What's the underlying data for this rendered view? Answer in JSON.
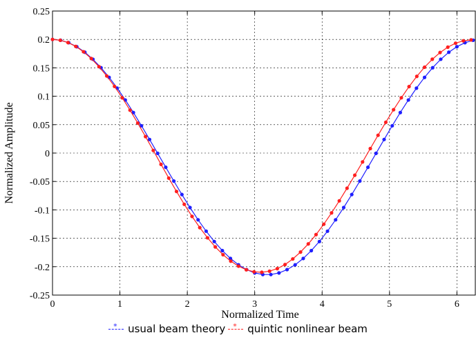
{
  "chart_data": {
    "type": "line",
    "title": "",
    "xlabel": "Normalized Time",
    "ylabel": "Normalized Amplitude",
    "xlim": [
      0,
      6.2832
    ],
    "ylim": [
      -0.25,
      0.25
    ],
    "xticks": [
      0,
      1,
      2,
      3,
      4,
      5,
      6
    ],
    "xtick_labels": [
      "0",
      "1",
      "2",
      "3",
      "4",
      "5",
      "6"
    ],
    "yticks": [
      0.25,
      0.2,
      0.15,
      0.1,
      0.05,
      0,
      -0.05,
      -0.1,
      -0.15,
      -0.2,
      -0.25
    ],
    "ytick_labels": [
      "0.25",
      "0.2",
      "0.15",
      "0.1",
      "0.05",
      "0",
      "-0.05",
      "-0.1",
      "-0.15",
      "-0.2",
      "-0.25"
    ],
    "grid": true,
    "legend_position": "bottom-center",
    "series": [
      {
        "name": "usual beam theory",
        "color": "#1f1fff",
        "x": [
          0,
          0.12,
          0.24,
          0.36,
          0.48,
          0.6,
          0.72,
          0.84,
          0.96,
          1.08,
          1.2,
          1.32,
          1.44,
          1.56,
          1.68,
          1.8,
          1.92,
          2.04,
          2.16,
          2.28,
          2.4,
          2.52,
          2.64,
          2.76,
          2.88,
          3.0,
          3.12,
          3.24,
          3.36,
          3.48,
          3.6,
          3.72,
          3.84,
          3.96,
          4.08,
          4.2,
          4.32,
          4.44,
          4.56,
          4.68,
          4.8,
          4.92,
          5.04,
          5.16,
          5.28,
          5.4,
          5.52,
          5.64,
          5.76,
          5.88,
          6.0,
          6.12,
          6.24
        ],
        "y": [
          0.2,
          0.1986,
          0.1943,
          0.1872,
          0.1775,
          0.1651,
          0.1502,
          0.1332,
          0.1142,
          0.0934,
          0.0713,
          0.048,
          0.0239,
          -0.0005,
          -0.025,
          -0.0493,
          -0.073,
          -0.0959,
          -0.1175,
          -0.1375,
          -0.1557,
          -0.1717,
          -0.1855,
          -0.1967,
          -0.2052,
          -0.211,
          -0.2138,
          -0.2138,
          -0.211,
          -0.2052,
          -0.1967,
          -0.1855,
          -0.1717,
          -0.1557,
          -0.1375,
          -0.1175,
          -0.0959,
          -0.073,
          -0.0493,
          -0.025,
          -0.0005,
          0.0239,
          0.048,
          0.0713,
          0.0934,
          0.1142,
          0.1332,
          0.1502,
          0.1651,
          0.1775,
          0.1872,
          0.1943,
          0.1986
        ]
      },
      {
        "name": "quintic nonlinear beam",
        "color": "#ff1f1f",
        "x": [
          0,
          0.115,
          0.23,
          0.345,
          0.46,
          0.575,
          0.69,
          0.805,
          0.92,
          1.035,
          1.15,
          1.265,
          1.38,
          1.495,
          1.61,
          1.725,
          1.84,
          1.955,
          2.07,
          2.185,
          2.3,
          2.415,
          2.53,
          2.645,
          2.76,
          2.875,
          2.99,
          3.105,
          3.22,
          3.335,
          3.45,
          3.565,
          3.68,
          3.795,
          3.91,
          4.025,
          4.14,
          4.255,
          4.37,
          4.485,
          4.6,
          4.715,
          4.83,
          4.945,
          5.06,
          5.175,
          5.29,
          5.405,
          5.52,
          5.635,
          5.75,
          5.865,
          5.98,
          6.095,
          6.21
        ],
        "y": [
          0.2,
          0.1986,
          0.1945,
          0.1877,
          0.1783,
          0.1664,
          0.1521,
          0.1357,
          0.1173,
          0.0972,
          0.0755,
          0.0527,
          0.029,
          0.0046,
          -0.0199,
          -0.0441,
          -0.0676,
          -0.0902,
          -0.1115,
          -0.1312,
          -0.1492,
          -0.1652,
          -0.1789,
          -0.1903,
          -0.1991,
          -0.2054,
          -0.209,
          -0.2098,
          -0.2079,
          -0.2034,
          -0.1962,
          -0.1864,
          -0.1743,
          -0.1599,
          -0.1435,
          -0.1252,
          -0.1053,
          -0.0841,
          -0.0619,
          -0.039,
          -0.0156,
          0.0079,
          0.0313,
          0.0542,
          0.0763,
          0.0973,
          0.117,
          0.135,
          0.1511,
          0.1652,
          0.177,
          0.1864,
          0.1933,
          0.1976,
          0.1992
        ]
      }
    ]
  }
}
